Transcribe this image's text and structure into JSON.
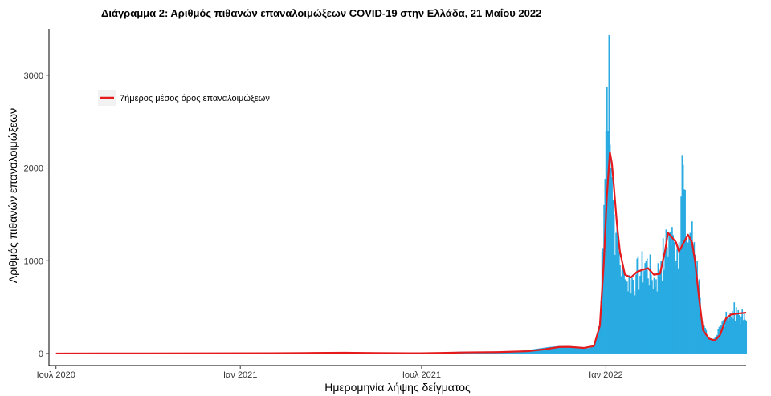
{
  "chart_data": {
    "type": "bar",
    "title": "Διάγραμμα 2: Αριθμός πιθανών επαναλοιμώξεων COVID-19 στην Ελλάδα, 21 Μαΐου 2022",
    "xlabel": "Ημερομηνία λήψης δείγματος",
    "ylabel": "Αριθμός πιθανών επαναλοιμώξεων",
    "x_range": [
      "2020-06-24",
      "2022-05-21"
    ],
    "ylim": [
      -130,
      3500
    ],
    "y_ticks": [
      0,
      1000,
      2000,
      3000
    ],
    "x_ticks": [
      {
        "date": "2020-07-01",
        "label": "Ιουλ 2020"
      },
      {
        "date": "2021-01-01",
        "label": "Ιαν 2021"
      },
      {
        "date": "2021-07-01",
        "label": "Ιουλ 2021"
      },
      {
        "date": "2022-01-01",
        "label": "Ιαν 2022"
      }
    ],
    "grid": false,
    "legend_position": "top-left inside plot",
    "colors": {
      "bars": "#29abe2",
      "line": "#e41a1c"
    },
    "series": [
      {
        "name": "daily",
        "type": "bar",
        "points": [
          [
            "2020-07-01",
            1
          ],
          [
            "2020-10-01",
            2
          ],
          [
            "2020-11-15",
            6
          ],
          [
            "2021-01-15",
            4
          ],
          [
            "2021-03-01",
            8
          ],
          [
            "2021-04-01",
            12
          ],
          [
            "2021-05-15",
            6
          ],
          [
            "2021-06-20",
            3
          ],
          [
            "2021-07-15",
            10
          ],
          [
            "2021-08-10",
            20
          ],
          [
            "2021-09-01",
            18
          ],
          [
            "2021-10-01",
            20
          ],
          [
            "2021-10-20",
            45
          ],
          [
            "2021-11-05",
            70
          ],
          [
            "2021-11-15",
            80
          ],
          [
            "2021-11-25",
            80
          ],
          [
            "2021-12-05",
            70
          ],
          [
            "2021-12-15",
            55
          ],
          [
            "2021-12-20",
            90
          ],
          [
            "2021-12-23",
            180
          ],
          [
            "2021-12-26",
            350
          ],
          [
            "2021-12-28",
            1100
          ],
          [
            "2021-12-30",
            1600
          ],
          [
            "2022-01-01",
            2400
          ],
          [
            "2022-01-02",
            2870
          ],
          [
            "2022-01-03",
            2400
          ],
          [
            "2022-01-04",
            3430
          ],
          [
            "2022-01-05",
            2250
          ],
          [
            "2022-01-06",
            2000
          ],
          [
            "2022-01-07",
            1900
          ],
          [
            "2022-01-09",
            1500
          ],
          [
            "2022-01-11",
            1300
          ],
          [
            "2022-01-14",
            1100
          ],
          [
            "2022-01-17",
            900
          ],
          [
            "2022-01-20",
            800
          ],
          [
            "2022-01-25",
            800
          ],
          [
            "2022-01-31",
            850
          ],
          [
            "2022-02-05",
            900
          ],
          [
            "2022-02-10",
            1000
          ],
          [
            "2022-02-15",
            850
          ],
          [
            "2022-02-20",
            800
          ],
          [
            "2022-02-25",
            1000
          ],
          [
            "2022-03-01",
            1100
          ],
          [
            "2022-03-05",
            1300
          ],
          [
            "2022-03-10",
            1200
          ],
          [
            "2022-03-15",
            1200
          ],
          [
            "2022-03-18",
            2140
          ],
          [
            "2022-03-22",
            1250
          ],
          [
            "2022-03-26",
            1300
          ],
          [
            "2022-03-30",
            1200
          ],
          [
            "2022-04-02",
            1000
          ],
          [
            "2022-04-05",
            600
          ],
          [
            "2022-04-08",
            300
          ],
          [
            "2022-04-12",
            180
          ],
          [
            "2022-04-18",
            150
          ],
          [
            "2022-04-22",
            200
          ],
          [
            "2022-04-26",
            300
          ],
          [
            "2022-05-01",
            450
          ],
          [
            "2022-05-06",
            400
          ],
          [
            "2022-05-11",
            500
          ],
          [
            "2022-05-16",
            400
          ],
          [
            "2022-05-21",
            350
          ]
        ]
      },
      {
        "name": "7ήμερος μέσος όρος επαναλοιμώξεων",
        "type": "line",
        "points": [
          [
            "2020-07-01",
            0
          ],
          [
            "2020-10-01",
            1
          ],
          [
            "2020-12-01",
            2
          ],
          [
            "2021-02-01",
            3
          ],
          [
            "2021-03-15",
            6
          ],
          [
            "2021-04-15",
            8
          ],
          [
            "2021-05-15",
            5
          ],
          [
            "2021-07-01",
            3
          ],
          [
            "2021-07-20",
            6
          ],
          [
            "2021-08-15",
            12
          ],
          [
            "2021-09-15",
            15
          ],
          [
            "2021-10-15",
            25
          ],
          [
            "2021-11-01",
            45
          ],
          [
            "2021-11-15",
            70
          ],
          [
            "2021-11-25",
            72
          ],
          [
            "2021-12-10",
            60
          ],
          [
            "2021-12-20",
            80
          ],
          [
            "2021-12-26",
            300
          ],
          [
            "2021-12-30",
            1000
          ],
          [
            "2022-01-02",
            1700
          ],
          [
            "2022-01-05",
            2170
          ],
          [
            "2022-01-07",
            2050
          ],
          [
            "2022-01-09",
            1800
          ],
          [
            "2022-01-12",
            1400
          ],
          [
            "2022-01-15",
            1100
          ],
          [
            "2022-01-20",
            850
          ],
          [
            "2022-01-26",
            820
          ],
          [
            "2022-02-01",
            880
          ],
          [
            "2022-02-06",
            900
          ],
          [
            "2022-02-12",
            920
          ],
          [
            "2022-02-18",
            850
          ],
          [
            "2022-02-24",
            860
          ],
          [
            "2022-03-01",
            1100
          ],
          [
            "2022-03-04",
            1300
          ],
          [
            "2022-03-08",
            1250
          ],
          [
            "2022-03-12",
            1200
          ],
          [
            "2022-03-15",
            1100
          ],
          [
            "2022-03-20",
            1200
          ],
          [
            "2022-03-24",
            1280
          ],
          [
            "2022-03-28",
            1200
          ],
          [
            "2022-03-31",
            1000
          ],
          [
            "2022-04-04",
            600
          ],
          [
            "2022-04-08",
            250
          ],
          [
            "2022-04-14",
            160
          ],
          [
            "2022-04-20",
            140
          ],
          [
            "2022-04-25",
            200
          ],
          [
            "2022-05-01",
            380
          ],
          [
            "2022-05-06",
            420
          ],
          [
            "2022-05-12",
            430
          ],
          [
            "2022-05-21",
            440
          ]
        ]
      }
    ]
  }
}
